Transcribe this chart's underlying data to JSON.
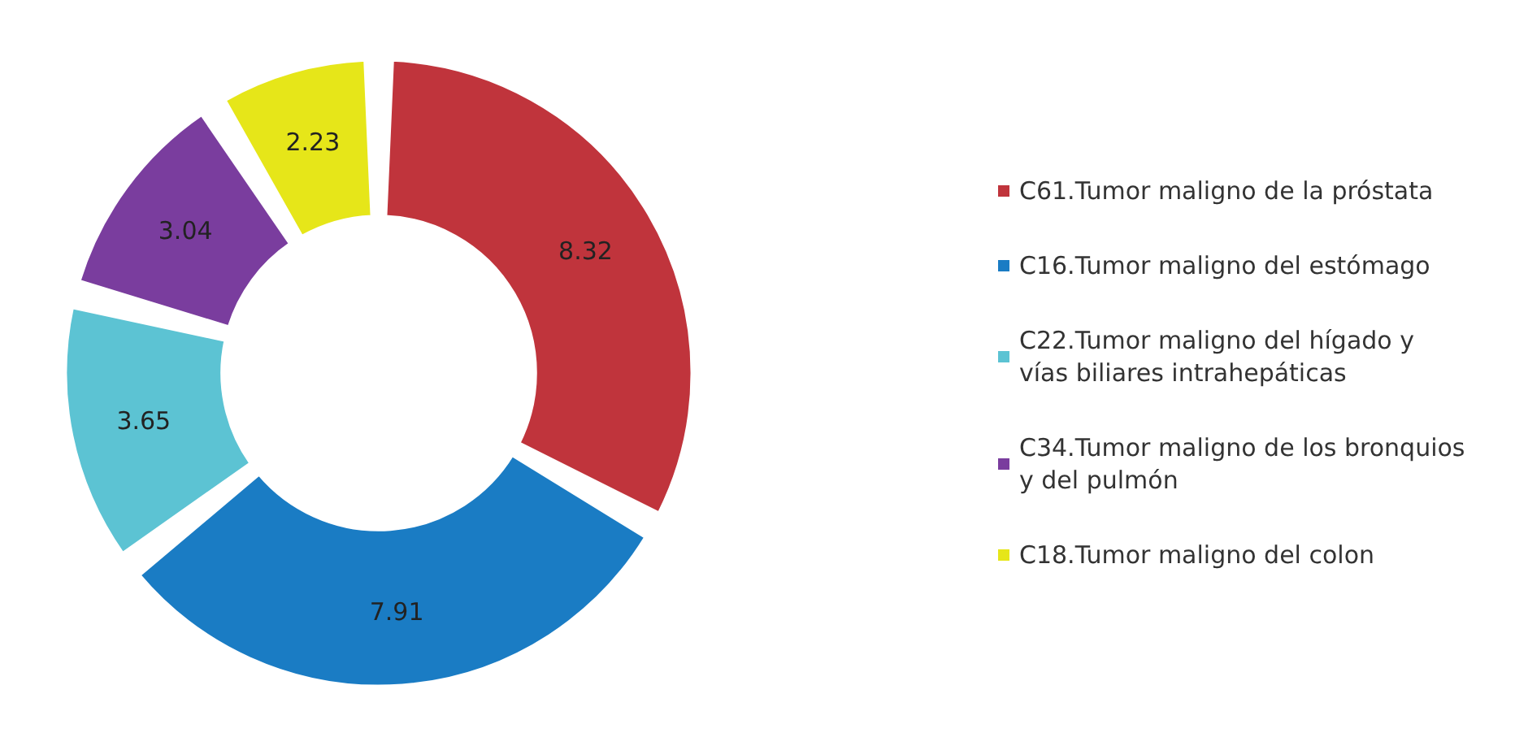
{
  "chart_data": {
    "type": "donut",
    "categories": [
      "C61.Tumor maligno de la próstata",
      "C16.Tumor maligno del estómago",
      "C22.Tumor maligno del hígado y  vías biliares intrahepáticas",
      "C34.Tumor maligno de los bronquios y del pulmón",
      "C18.Tumor maligno del colon"
    ],
    "values": [
      8.32,
      7.91,
      3.65,
      3.04,
      2.23
    ],
    "colors": [
      "#c0343c",
      "#1a7cc4",
      "#5cc3d3",
      "#7a3d9e",
      "#e6e619"
    ],
    "data_labels": true,
    "legend": "right"
  }
}
